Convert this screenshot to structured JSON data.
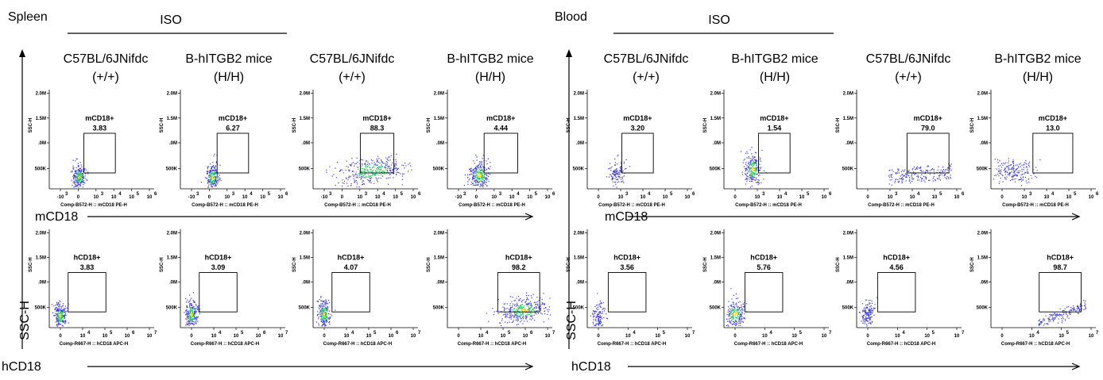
{
  "chart_data": {
    "type": "scatter",
    "sections": [
      {
        "name": "Spleen",
        "iso_label": "ISO",
        "headers": [
          [
            "C57BL/6JNifdc",
            "(+/+)"
          ],
          [
            "B-hITGB2 mice",
            "(H/H)"
          ],
          [
            "C57BL/6JNifdc",
            "(+/+)"
          ],
          [
            "B-hITGB2 mice",
            "(H/H)"
          ]
        ],
        "rows": [
          {
            "marker": "mCD18",
            "x_axis_label": "Comp-B572-H :: mCD18 PE-H",
            "x_ticks": [
              "-10",
              "0",
              "10",
              "10",
              "10",
              "10"
            ],
            "x_tick_exps": [
              "3",
              "",
              "3",
              "4",
              "5",
              "6"
            ],
            "gates": [
              {
                "label": "mCD18+",
                "value": "3.83"
              },
              {
                "label": "mCD18+",
                "value": "6.27"
              },
              {
                "label": "mCD18+",
                "value": "88.3"
              },
              {
                "label": "mCD18+",
                "value": "4.44"
              }
            ]
          },
          {
            "marker": "hCD18",
            "x_axis_label": "Comp-R667-H :: hCD18 APC-H",
            "x_ticks": [
              "0",
              "10",
              "10",
              "10",
              "10"
            ],
            "x_tick_exps": [
              "",
              "4",
              "5",
              "6",
              "7"
            ],
            "gates": [
              {
                "label": "hCD18+",
                "value": "3.83"
              },
              {
                "label": "hCD18+",
                "value": "3.09"
              },
              {
                "label": "hCD18+",
                "value": "4.07"
              },
              {
                "label": "hCD18+",
                "value": "98.2"
              }
            ]
          }
        ]
      },
      {
        "name": "Blood",
        "iso_label": "ISO",
        "headers": [
          [
            "C57BL/6JNifdc",
            "(+/+)"
          ],
          [
            "B-hITGB2 mice",
            "(H/H)"
          ],
          [
            "C57BL/6JNifdc",
            "(+/+)"
          ],
          [
            "B-hITGB2 mice",
            "(H/H)"
          ]
        ],
        "rows": [
          {
            "marker": "mCD18",
            "x_axis_label": "Comp-B572-H :: mCD18 PE-H",
            "x_ticks": [
              "0",
              "10",
              "10",
              "10",
              "10"
            ],
            "x_tick_exps": [
              "",
              "3",
              "4",
              "5",
              "6"
            ],
            "gates": [
              {
                "label": "mCD18+",
                "value": "3.20"
              },
              {
                "label": "mCD18+",
                "value": "1.54"
              },
              {
                "label": "mCD18+",
                "value": "79.0"
              },
              {
                "label": "mCD18+",
                "value": "13.0"
              }
            ]
          },
          {
            "marker": "hCD18",
            "x_axis_label": "Comp-R667-H :: hCD18 APC-H",
            "x_ticks": [
              "0",
              "10",
              "10",
              "10"
            ],
            "x_tick_exps": [
              "",
              "4",
              "5",
              "7"
            ],
            "gates": [
              {
                "label": "hCD18+",
                "value": "3.56"
              },
              {
                "label": "hCD18+",
                "value": "5.76"
              },
              {
                "label": "hCD18+",
                "value": "4.56"
              },
              {
                "label": "hCD18+",
                "value": "98.7"
              }
            ]
          }
        ]
      }
    ],
    "y_axis_label": "SSC-H",
    "y_ticks": [
      "2.0M",
      "1.5M",
      ".0M",
      "500K"
    ],
    "ylabel": "SSC-H",
    "colors": {
      "sparse": "#3b3bd6",
      "dense": "#22c55e",
      "core": "#ffcc00"
    }
  }
}
